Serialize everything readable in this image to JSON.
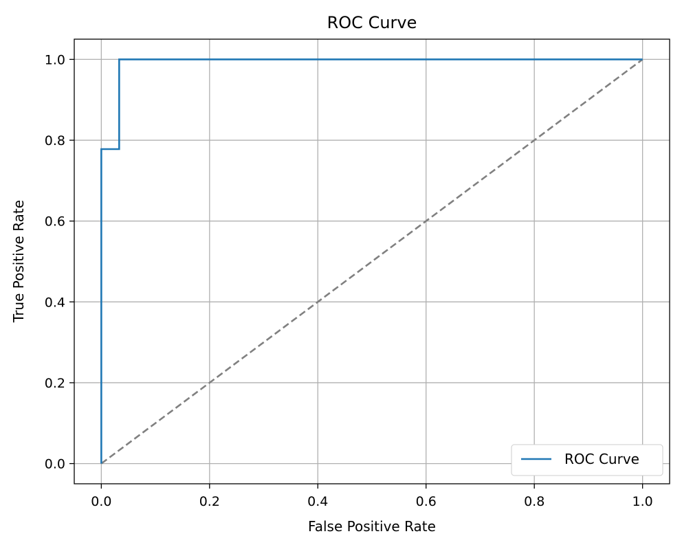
{
  "chart_data": {
    "type": "line",
    "title": "ROC Curve",
    "xlabel": "False Positive Rate",
    "ylabel": "True Positive Rate",
    "xlim": [
      -0.05,
      1.05
    ],
    "ylim": [
      -0.05,
      1.05
    ],
    "xticks": [
      "0.0",
      "0.2",
      "0.4",
      "0.6",
      "0.8",
      "1.0"
    ],
    "yticks": [
      "0.0",
      "0.2",
      "0.4",
      "0.6",
      "0.8",
      "1.0"
    ],
    "grid": true,
    "legend_position": "lower-right",
    "series": [
      {
        "name": "ROC Curve",
        "color": "#1f77b4",
        "style": "solid",
        "x": [
          0.0,
          0.0,
          0.033,
          0.033,
          1.0
        ],
        "y": [
          0.0,
          0.778,
          0.778,
          1.0,
          1.0
        ]
      },
      {
        "color": "#808080",
        "style": "dashed",
        "x": [
          0.0,
          1.0
        ],
        "y": [
          0.0,
          1.0
        ]
      }
    ]
  }
}
